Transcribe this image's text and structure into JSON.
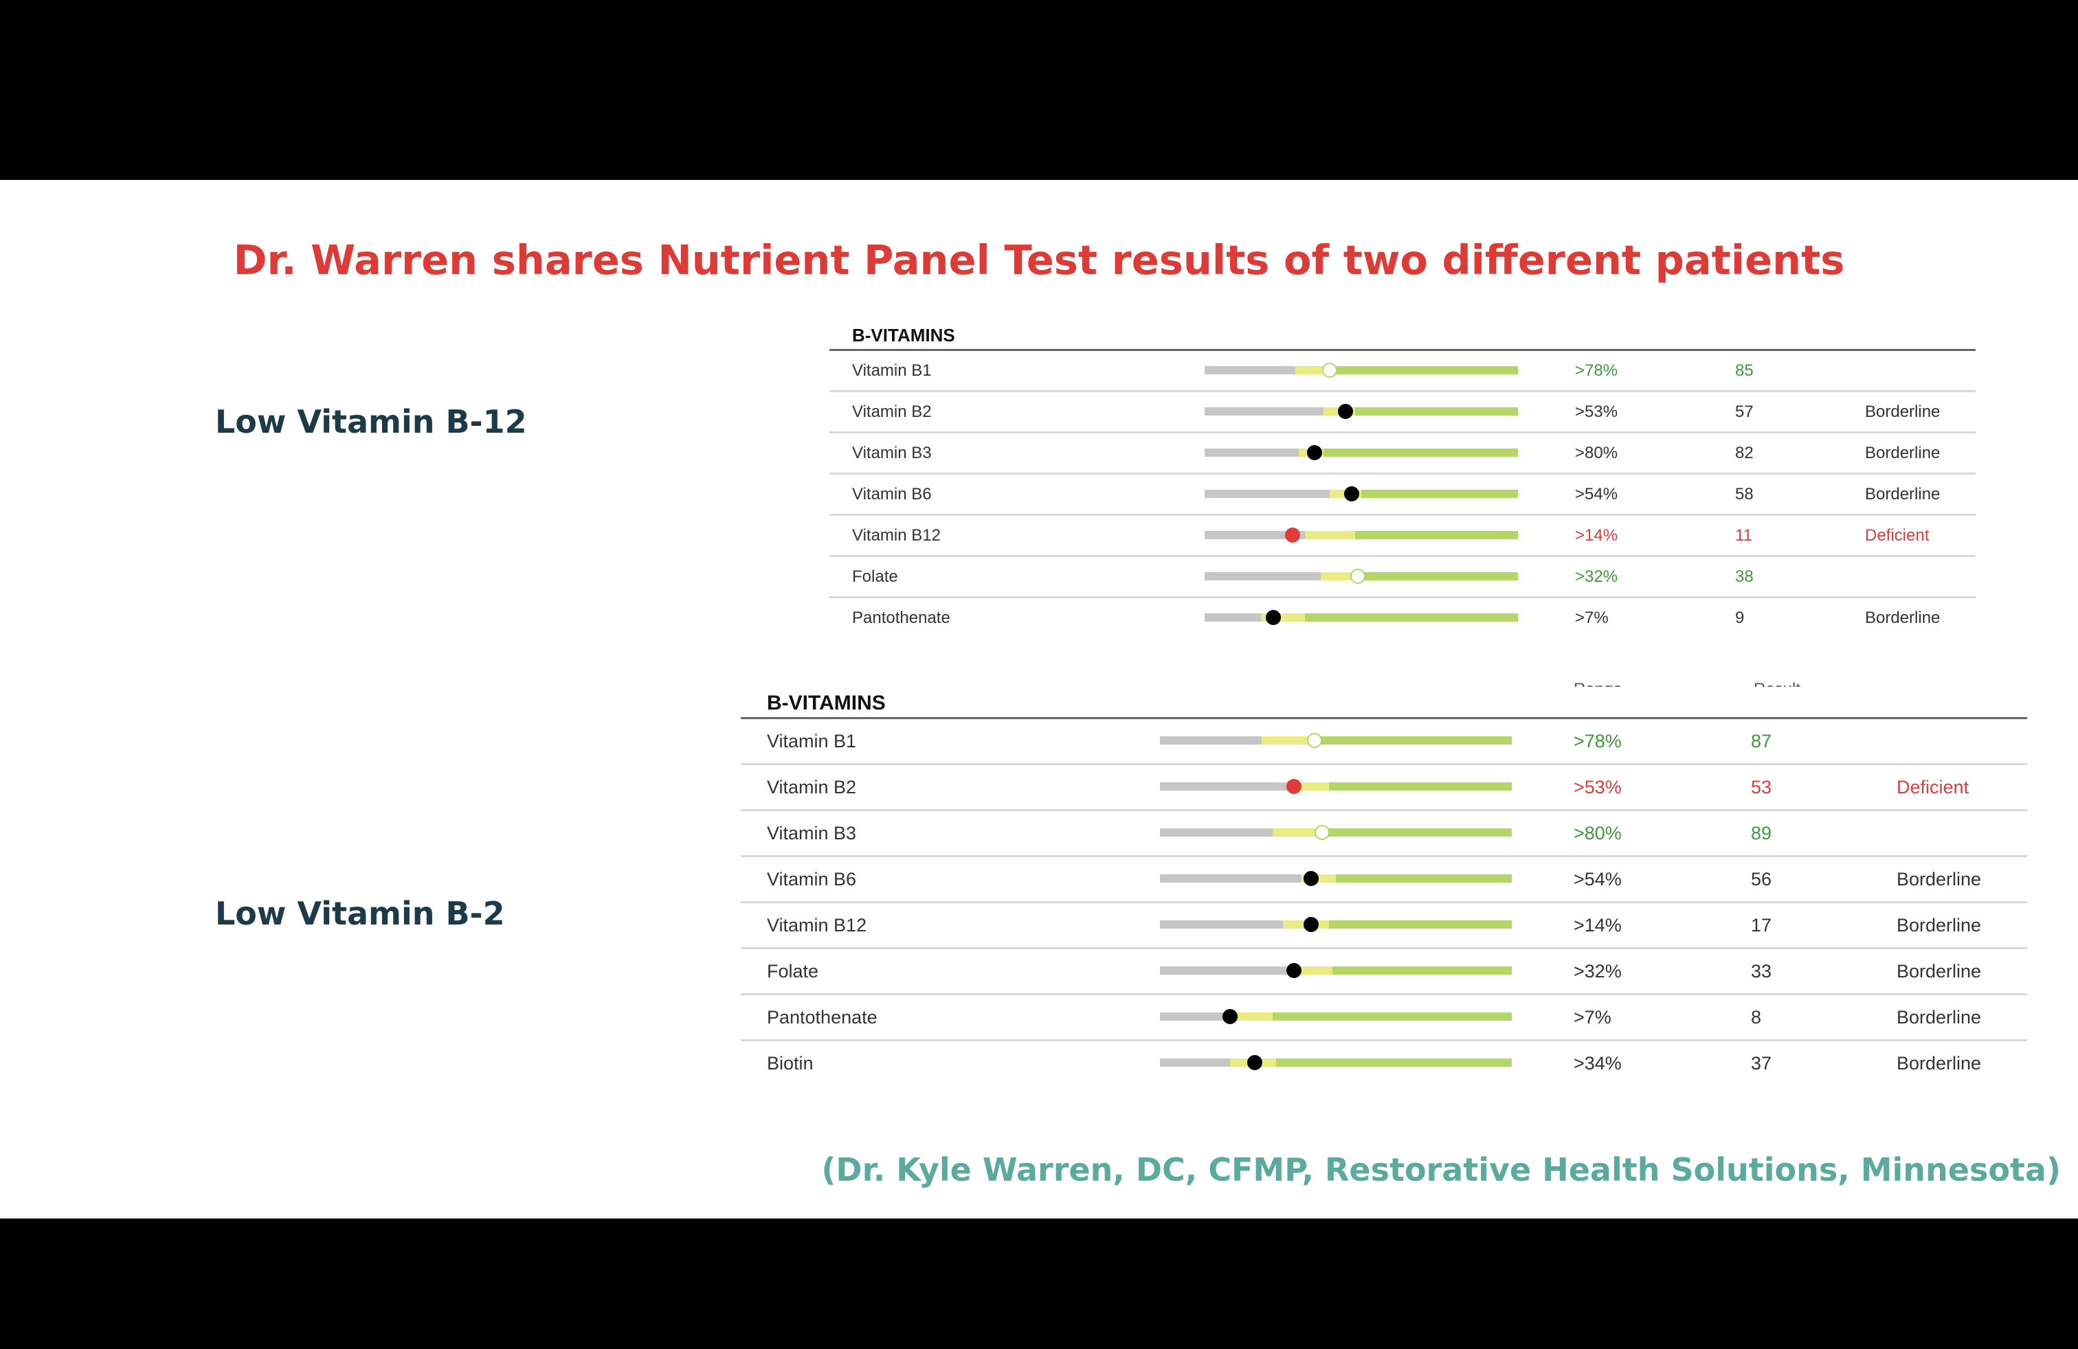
{
  "title": "Dr. Warren shares Nutrient Panel Test results of two different patients",
  "credit": "(Dr. Kyle Warren, DC, CFMP, Restorative Health Solutions, Minnesota)",
  "colors": {
    "title": "#e03a36",
    "label": "#1d3a48",
    "credit": "#5aaa9f",
    "bar_grey": "#c6c6c6",
    "bar_yellow": "#ecea82",
    "bar_green": "#b4d667",
    "ok": "#3f9a3b",
    "deficient": "#e33b3b"
  },
  "patients": [
    {
      "label": "Low Vitamin B-12",
      "panel_title": "B-VITAMINS",
      "rows": [
        {
          "name": "Vitamin B1",
          "range": ">78%",
          "result": "85",
          "status": "",
          "level": 0.4,
          "grey_end": 0.29,
          "yellow_end": 0.4,
          "dot": "white"
        },
        {
          "name": "Vitamin B2",
          "range": ">53%",
          "result": "57",
          "status": "Borderline",
          "level": 0.45,
          "grey_end": 0.38,
          "yellow_end": 0.48,
          "dot": "black"
        },
        {
          "name": "Vitamin B3",
          "range": ">80%",
          "result": "82",
          "status": "Borderline",
          "level": 0.35,
          "grey_end": 0.3,
          "yellow_end": 0.38,
          "dot": "black"
        },
        {
          "name": "Vitamin B6",
          "range": ">54%",
          "result": "58",
          "status": "Borderline",
          "level": 0.47,
          "grey_end": 0.4,
          "yellow_end": 0.5,
          "dot": "black"
        },
        {
          "name": "Vitamin B12",
          "range": ">14%",
          "result": "11",
          "status": "Deficient",
          "level": 0.28,
          "grey_end": 0.32,
          "yellow_end": 0.48,
          "dot": "red"
        },
        {
          "name": "Folate",
          "range": ">32%",
          "result": "38",
          "status": "",
          "level": 0.49,
          "grey_end": 0.37,
          "yellow_end": 0.49,
          "dot": "white"
        },
        {
          "name": "Pantothenate",
          "range": ">7%",
          "result": "9",
          "status": "Borderline",
          "level": 0.22,
          "grey_end": 0.18,
          "yellow_end": 0.32,
          "dot": "black"
        }
      ]
    },
    {
      "label": "Low Vitamin B-2",
      "panel_title": "B-VITAMINS",
      "rows": [
        {
          "name": "Vitamin B1",
          "range": ">78%",
          "result": "87",
          "status": "",
          "level": 0.44,
          "grey_end": 0.29,
          "yellow_end": 0.44,
          "dot": "white"
        },
        {
          "name": "Vitamin B2",
          "range": ">53%",
          "result": "53",
          "status": "Deficient",
          "level": 0.38,
          "grey_end": 0.38,
          "yellow_end": 0.48,
          "dot": "red"
        },
        {
          "name": "Vitamin B3",
          "range": ">80%",
          "result": "89",
          "status": "",
          "level": 0.46,
          "grey_end": 0.32,
          "yellow_end": 0.46,
          "dot": "white"
        },
        {
          "name": "Vitamin B6",
          "range": ">54%",
          "result": "56",
          "status": "Borderline",
          "level": 0.43,
          "grey_end": 0.4,
          "yellow_end": 0.5,
          "dot": "black"
        },
        {
          "name": "Vitamin B12",
          "range": ">14%",
          "result": "17",
          "status": "Borderline",
          "level": 0.43,
          "grey_end": 0.35,
          "yellow_end": 0.48,
          "dot": "black"
        },
        {
          "name": "Folate",
          "range": ">32%",
          "result": "33",
          "status": "Borderline",
          "level": 0.38,
          "grey_end": 0.36,
          "yellow_end": 0.49,
          "dot": "black"
        },
        {
          "name": "Pantothenate",
          "range": ">7%",
          "result": "8",
          "status": "Borderline",
          "level": 0.2,
          "grey_end": 0.18,
          "yellow_end": 0.32,
          "dot": "black"
        },
        {
          "name": "Biotin",
          "range": ">34%",
          "result": "37",
          "status": "Borderline",
          "level": 0.27,
          "grey_end": 0.2,
          "yellow_end": 0.33,
          "dot": "black"
        }
      ]
    }
  ]
}
